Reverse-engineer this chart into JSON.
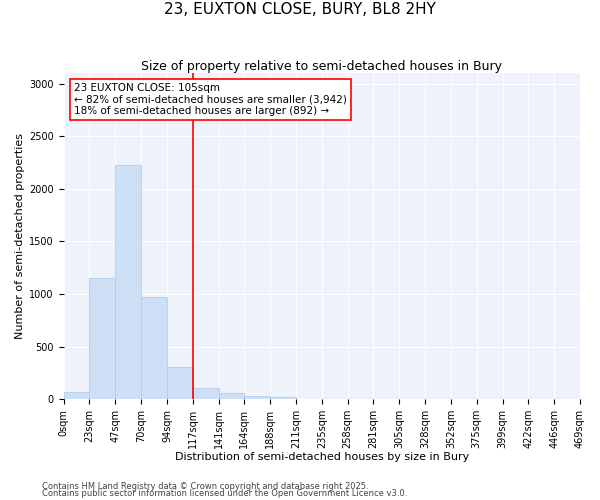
{
  "title": "23, EUXTON CLOSE, BURY, BL8 2HY",
  "subtitle": "Size of property relative to semi-detached houses in Bury",
  "xlabel": "Distribution of semi-detached houses by size in Bury",
  "ylabel": "Number of semi-detached properties",
  "footnote1": "Contains HM Land Registry data © Crown copyright and database right 2025.",
  "footnote2": "Contains public sector information licensed under the Open Government Licence v3.0.",
  "bin_labels": [
    "0sqm",
    "23sqm",
    "47sqm",
    "70sqm",
    "94sqm",
    "117sqm",
    "141sqm",
    "164sqm",
    "188sqm",
    "211sqm",
    "235sqm",
    "258sqm",
    "281sqm",
    "305sqm",
    "328sqm",
    "352sqm",
    "375sqm",
    "399sqm",
    "422sqm",
    "446sqm",
    "469sqm"
  ],
  "bar_values": [
    70,
    1150,
    2230,
    975,
    305,
    110,
    55,
    30,
    18,
    0,
    0,
    0,
    0,
    0,
    0,
    0,
    0,
    0,
    0,
    0
  ],
  "bar_color": "#ccdff5",
  "bar_edge_color": "#aac8e8",
  "vline_x_bin": 4,
  "vline_color": "red",
  "annotation_text": "23 EUXTON CLOSE: 105sqm\n← 82% of semi-detached houses are smaller (3,942)\n18% of semi-detached houses are larger (892) →",
  "ylim": [
    0,
    3100
  ],
  "yticks": [
    0,
    500,
    1000,
    1500,
    2000,
    2500,
    3000
  ],
  "background_color": "#eef2fb",
  "title_fontsize": 11,
  "subtitle_fontsize": 9,
  "axis_label_fontsize": 8,
  "tick_fontsize": 7,
  "annotation_fontsize": 7.5
}
